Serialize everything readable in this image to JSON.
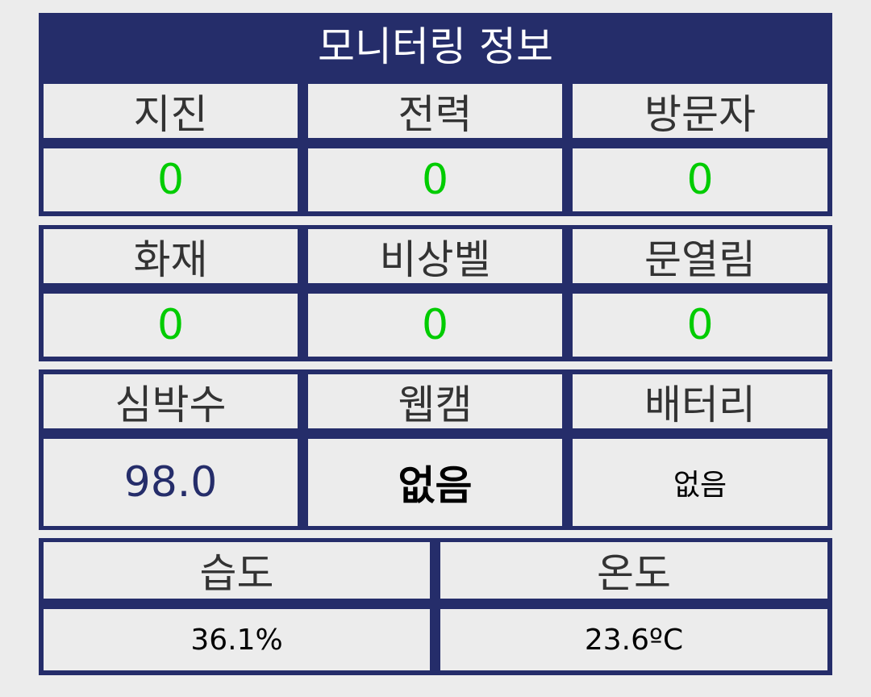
{
  "header": {
    "title": "모니터링 정보"
  },
  "colors": {
    "navy": "#252d6a",
    "ok_green": "#00cc00",
    "background": "#ececec"
  },
  "row1": {
    "labels": [
      "지진",
      "전력",
      "방문자"
    ],
    "values": [
      "0",
      "0",
      "0"
    ]
  },
  "row2": {
    "labels": [
      "화재",
      "비상벨",
      "문열림"
    ],
    "values": [
      "0",
      "0",
      "0"
    ]
  },
  "row3": {
    "labels": [
      "심박수",
      "웹캠",
      "배터리"
    ],
    "values": [
      "98.0",
      "없음",
      "없음"
    ]
  },
  "row4": {
    "labels": [
      "습도",
      "온도"
    ],
    "values": [
      "36.1%",
      "23.6ºC"
    ]
  }
}
